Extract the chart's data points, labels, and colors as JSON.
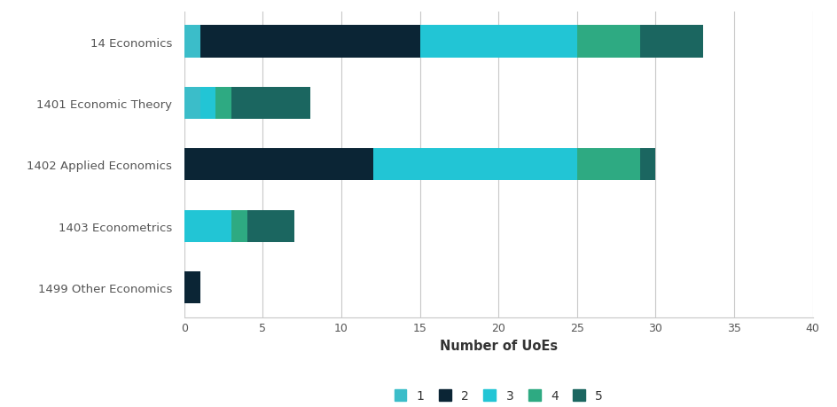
{
  "categories": [
    "14 Economics",
    "1401 Economic Theory",
    "1402 Applied Economics",
    "1403 Econometrics",
    "1499 Other Economics"
  ],
  "ratings": {
    "1": [
      1,
      1,
      0,
      0,
      0
    ],
    "2": [
      14,
      0,
      12,
      0,
      1
    ],
    "3": [
      10,
      1,
      13,
      3,
      0
    ],
    "4": [
      4,
      1,
      4,
      1,
      0
    ],
    "5": [
      4,
      5,
      1,
      3,
      0
    ]
  },
  "colors": {
    "1": "#3BBDC9",
    "2": "#0B2535",
    "3": "#22C5D5",
    "4": "#2EAA82",
    "5": "#1B6660"
  },
  "legend_labels": [
    "1",
    "2",
    "3",
    "4",
    "5"
  ],
  "xlabel": "Number of UoEs",
  "xlim": [
    0,
    40
  ],
  "xticks": [
    0,
    5,
    10,
    15,
    20,
    25,
    30,
    35,
    40
  ],
  "background_color": "#ffffff",
  "grid_color": "#c8c8c8",
  "bar_height": 0.52,
  "figsize": [
    9.45,
    4.6
  ],
  "dpi": 100
}
